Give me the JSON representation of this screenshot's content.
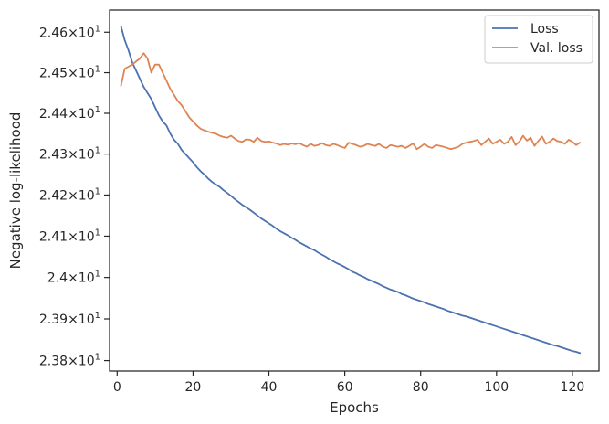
{
  "chart_data": {
    "type": "line",
    "title": "",
    "xlabel": "Epochs",
    "ylabel": "Negative log-likelihood",
    "xlim": [
      -2,
      127
    ],
    "ylim": [
      23.775,
      24.655
    ],
    "yscale": "log",
    "xticks": [
      0,
      20,
      40,
      60,
      80,
      100,
      120
    ],
    "yticks": [
      23.8,
      23.9,
      24.0,
      24.1,
      24.2,
      24.3,
      24.4,
      24.5,
      24.6
    ],
    "ytick_labels": [
      {
        "mantissa": "2.38",
        "base": "10",
        "exp": "1"
      },
      {
        "mantissa": "2.39",
        "base": "10",
        "exp": "1"
      },
      {
        "mantissa": "2.4",
        "base": "10",
        "exp": "1"
      },
      {
        "mantissa": "2.41",
        "base": "10",
        "exp": "1"
      },
      {
        "mantissa": "2.42",
        "base": "10",
        "exp": "1"
      },
      {
        "mantissa": "2.43",
        "base": "10",
        "exp": "1"
      },
      {
        "mantissa": "2.44",
        "base": "10",
        "exp": "1"
      },
      {
        "mantissa": "2.45",
        "base": "10",
        "exp": "1"
      },
      {
        "mantissa": "2.46",
        "base": "10",
        "exp": "1"
      }
    ],
    "grid": false,
    "legend_position": "top-right",
    "x": [
      1,
      2,
      3,
      4,
      5,
      6,
      7,
      8,
      9,
      10,
      11,
      12,
      13,
      14,
      15,
      16,
      17,
      18,
      19,
      20,
      21,
      22,
      23,
      24,
      25,
      26,
      27,
      28,
      29,
      30,
      31,
      32,
      33,
      34,
      35,
      36,
      37,
      38,
      39,
      40,
      41,
      42,
      43,
      44,
      45,
      46,
      47,
      48,
      49,
      50,
      51,
      52,
      53,
      54,
      55,
      56,
      57,
      58,
      59,
      60,
      61,
      62,
      63,
      64,
      65,
      66,
      67,
      68,
      69,
      70,
      71,
      72,
      73,
      74,
      75,
      76,
      77,
      78,
      79,
      80,
      81,
      82,
      83,
      84,
      85,
      86,
      87,
      88,
      89,
      90,
      91,
      92,
      93,
      94,
      95,
      96,
      97,
      98,
      99,
      100,
      101,
      102,
      103,
      104,
      105,
      106,
      107,
      108,
      109,
      110,
      111,
      112,
      113,
      114,
      115,
      116,
      117,
      118,
      119,
      120,
      121,
      122
    ],
    "series": [
      {
        "name": "Loss",
        "color": "#4c72b0",
        "values": [
          24.615,
          24.58,
          24.555,
          24.525,
          24.505,
          24.485,
          24.465,
          24.45,
          24.435,
          24.415,
          24.395,
          24.38,
          24.37,
          24.35,
          24.335,
          24.325,
          24.31,
          24.3,
          24.29,
          24.28,
          24.268,
          24.258,
          24.25,
          24.24,
          24.232,
          24.226,
          24.22,
          24.212,
          24.205,
          24.198,
          24.19,
          24.183,
          24.176,
          24.17,
          24.164,
          24.157,
          24.15,
          24.143,
          24.137,
          24.131,
          24.125,
          24.118,
          24.112,
          24.107,
          24.102,
          24.096,
          24.091,
          24.085,
          24.08,
          24.075,
          24.07,
          24.066,
          24.06,
          24.055,
          24.05,
          24.044,
          24.039,
          24.034,
          24.03,
          24.025,
          24.02,
          24.014,
          24.01,
          24.005,
          24.001,
          23.996,
          23.992,
          23.988,
          23.984,
          23.979,
          23.975,
          23.971,
          23.968,
          23.965,
          23.96,
          23.957,
          23.953,
          23.949,
          23.946,
          23.943,
          23.94,
          23.936,
          23.933,
          23.93,
          23.927,
          23.924,
          23.92,
          23.917,
          23.914,
          23.911,
          23.908,
          23.906,
          23.903,
          23.9,
          23.897,
          23.894,
          23.891,
          23.888,
          23.885,
          23.882,
          23.879,
          23.876,
          23.873,
          23.87,
          23.867,
          23.864,
          23.861,
          23.858,
          23.855,
          23.852,
          23.849,
          23.846,
          23.843,
          23.84,
          23.837,
          23.835,
          23.832,
          23.829,
          23.826,
          23.823,
          23.821,
          23.818
        ]
      },
      {
        "name": "Val. loss",
        "color": "#dd8452",
        "values": [
          24.468,
          24.51,
          24.515,
          24.52,
          24.528,
          24.535,
          24.548,
          24.535,
          24.5,
          24.52,
          24.52,
          24.5,
          24.48,
          24.46,
          24.445,
          24.43,
          24.42,
          24.405,
          24.39,
          24.38,
          24.37,
          24.362,
          24.358,
          24.355,
          24.352,
          24.35,
          24.345,
          24.342,
          24.34,
          24.345,
          24.338,
          24.332,
          24.33,
          24.336,
          24.335,
          24.33,
          24.34,
          24.332,
          24.33,
          24.331,
          24.328,
          24.326,
          24.322,
          24.325,
          24.323,
          24.326,
          24.324,
          24.327,
          24.322,
          24.318,
          24.325,
          24.32,
          24.322,
          24.327,
          24.322,
          24.32,
          24.325,
          24.322,
          24.318,
          24.315,
          24.328,
          24.325,
          24.322,
          24.318,
          24.32,
          24.325,
          24.322,
          24.32,
          24.325,
          24.318,
          24.315,
          24.322,
          24.32,
          24.318,
          24.32,
          24.315,
          24.32,
          24.326,
          24.312,
          24.318,
          24.325,
          24.318,
          24.315,
          24.322,
          24.32,
          24.318,
          24.315,
          24.312,
          24.315,
          24.318,
          24.325,
          24.328,
          24.33,
          24.332,
          24.335,
          24.322,
          24.33,
          24.338,
          24.325,
          24.33,
          24.335,
          24.325,
          24.33,
          24.342,
          24.322,
          24.33,
          24.345,
          24.333,
          24.34,
          24.32,
          24.332,
          24.343,
          24.325,
          24.33,
          24.338,
          24.332,
          24.33,
          24.325,
          24.335,
          24.33,
          24.322,
          24.328
        ]
      }
    ]
  }
}
